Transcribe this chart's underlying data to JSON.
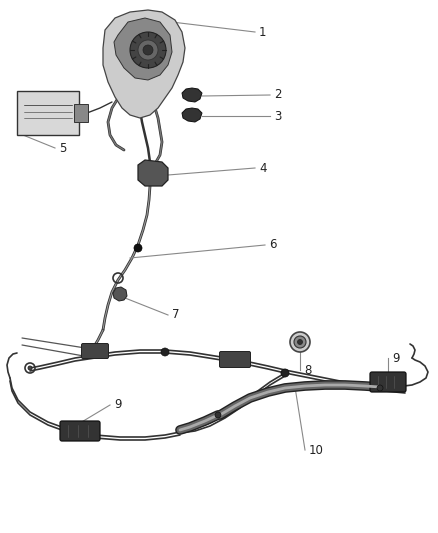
{
  "bg_color": "#ffffff",
  "line_color": "#333333",
  "dark_color": "#1a1a1a",
  "mid_color": "#555555",
  "light_color": "#aaaaaa",
  "figsize": [
    4.38,
    5.33
  ],
  "dpi": 100,
  "leader_color": "#888888",
  "label_fontsize": 8.5
}
